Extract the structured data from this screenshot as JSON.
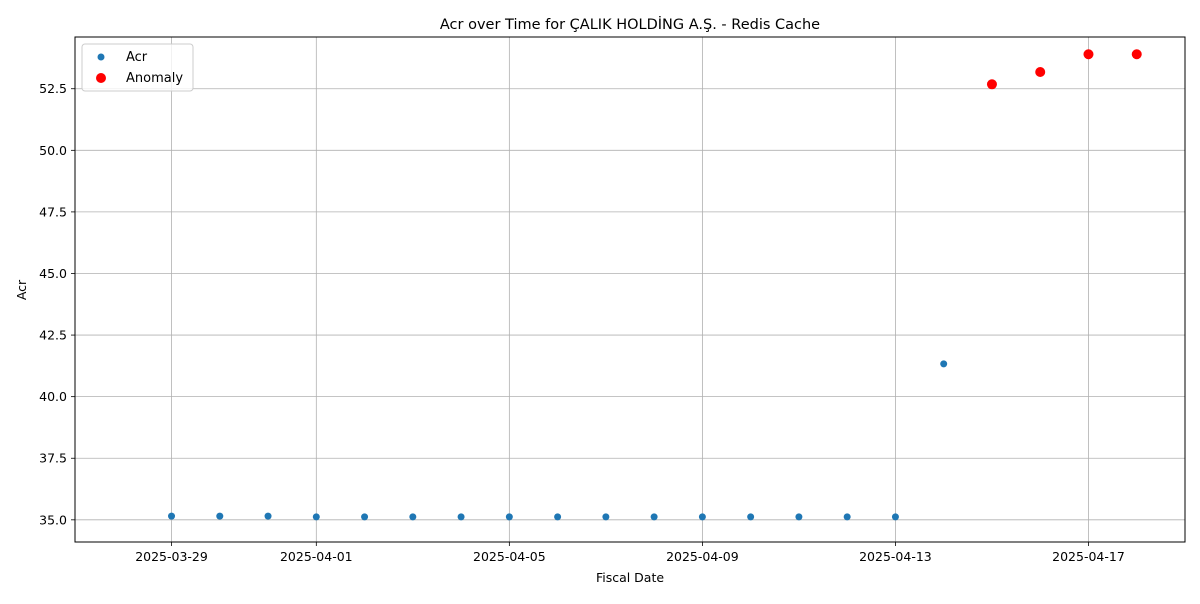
{
  "chart_data": {
    "type": "scatter",
    "title": "Acr over Time for ÇALIK HOLDİNG A.Ş. - Redis Cache",
    "xlabel": "Fiscal Date",
    "ylabel": "Acr",
    "xlim": [
      "2025-03-27",
      "2025-04-19"
    ],
    "ylim": [
      34.1,
      54.6
    ],
    "x_ticks": [
      "2025-03-29",
      "2025-04-01",
      "2025-04-05",
      "2025-04-09",
      "2025-04-13",
      "2025-04-17"
    ],
    "y_ticks": [
      "35.0",
      "37.5",
      "40.0",
      "42.5",
      "45.0",
      "47.5",
      "50.0",
      "52.5"
    ],
    "grid": true,
    "legend_position": "top-left",
    "legend": [
      "Acr",
      "Anomaly"
    ],
    "series": [
      {
        "name": "Acr",
        "color": "#1f77b4",
        "points": [
          {
            "x": "2025-03-29",
            "y": 35.15
          },
          {
            "x": "2025-03-30",
            "y": 35.15
          },
          {
            "x": "2025-03-31",
            "y": 35.15
          },
          {
            "x": "2025-04-01",
            "y": 35.12
          },
          {
            "x": "2025-04-02",
            "y": 35.12
          },
          {
            "x": "2025-04-03",
            "y": 35.12
          },
          {
            "x": "2025-04-04",
            "y": 35.12
          },
          {
            "x": "2025-04-05",
            "y": 35.12
          },
          {
            "x": "2025-04-06",
            "y": 35.12
          },
          {
            "x": "2025-04-07",
            "y": 35.12
          },
          {
            "x": "2025-04-08",
            "y": 35.12
          },
          {
            "x": "2025-04-09",
            "y": 35.12
          },
          {
            "x": "2025-04-10",
            "y": 35.12
          },
          {
            "x": "2025-04-11",
            "y": 35.12
          },
          {
            "x": "2025-04-12",
            "y": 35.12
          },
          {
            "x": "2025-04-13",
            "y": 35.12
          },
          {
            "x": "2025-04-14",
            "y": 41.33
          }
        ]
      },
      {
        "name": "Anomaly",
        "color": "#ff0000",
        "points": [
          {
            "x": "2025-04-15",
            "y": 52.68
          },
          {
            "x": "2025-04-16",
            "y": 53.18
          },
          {
            "x": "2025-04-17",
            "y": 53.9
          },
          {
            "x": "2025-04-18",
            "y": 53.9
          }
        ]
      }
    ]
  }
}
